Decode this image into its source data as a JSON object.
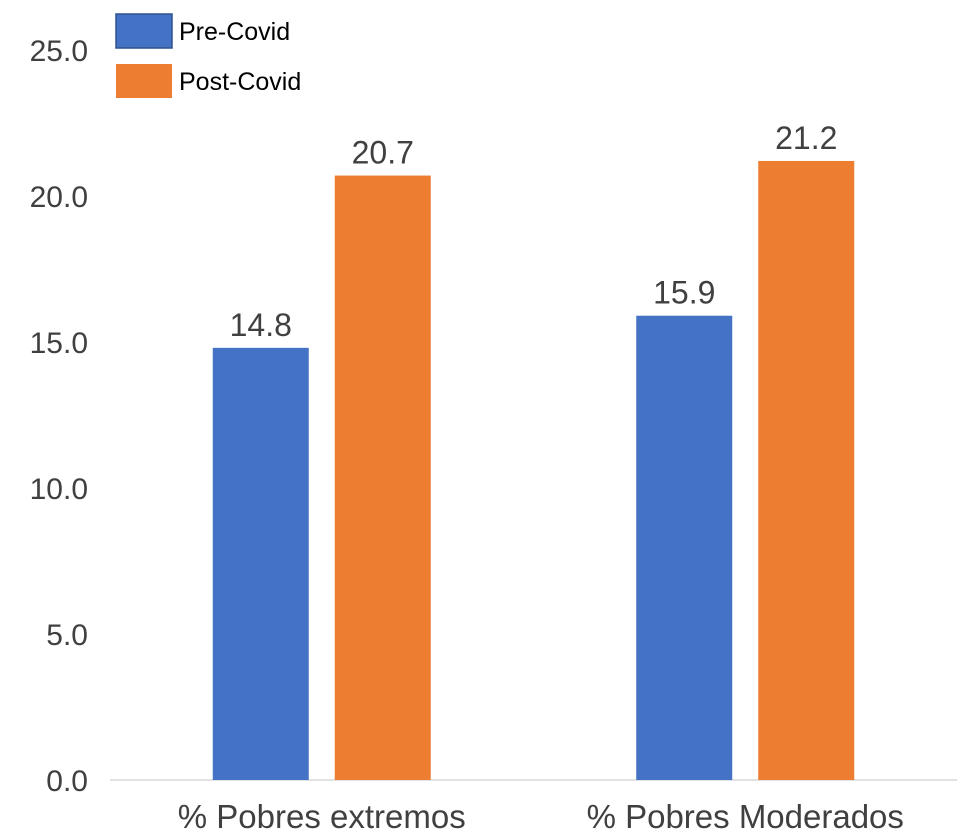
{
  "chart_data": {
    "type": "bar",
    "categories": [
      "% Pobres extremos",
      "% Pobres Moderados"
    ],
    "series": [
      {
        "name": "Pre-Covid",
        "values": [
          14.8,
          15.9
        ],
        "color": "#4472C4"
      },
      {
        "name": "Post-Covid",
        "values": [
          20.7,
          21.2
        ],
        "color": "#ED7D31"
      }
    ],
    "data_labels": [
      [
        "14.8",
        "15.9"
      ],
      [
        "20.7",
        "21.2"
      ]
    ],
    "ylim": [
      0,
      25
    ],
    "yticks": [
      0,
      5,
      10,
      15,
      20,
      25
    ],
    "ytick_labels": [
      "0.0",
      "5.0",
      "10.0",
      "15.0",
      "20.0",
      "25.0"
    ],
    "legend_position": "top-left",
    "grid": false
  }
}
